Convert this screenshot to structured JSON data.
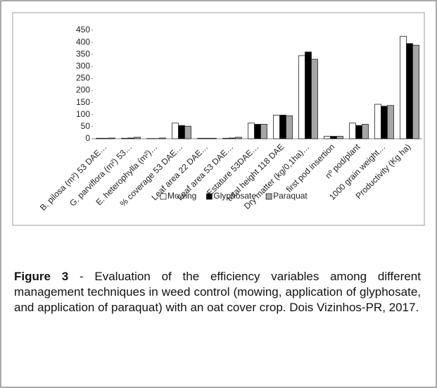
{
  "chart_data": {
    "type": "bar",
    "categories": [
      "B. pilosa (m²) 53 DAE…",
      "G. parviflora (m²) 53…",
      "E. heterophylla (m²)…",
      "% coverage 53 DAE…",
      "Leaf area 22 DAE…",
      "Leaf area 53 DAE…",
      "Estature 53DAE…",
      "total height 118 DAE",
      "Dry matter (kg/0,1ha)…",
      "first pod insertion",
      "nº pod/plant",
      "1000 grain weight…",
      "Productivity (Kg ha)"
    ],
    "series": [
      {
        "name": "Mowing",
        "color": "#ffffff",
        "values": [
          2,
          2,
          1,
          65,
          2,
          2,
          65,
          98,
          345,
          10,
          65,
          143,
          425
        ]
      },
      {
        "name": "Glyphosate",
        "color": "#000000",
        "values": [
          2,
          3,
          1,
          55,
          2,
          3,
          60,
          98,
          360,
          10,
          55,
          135,
          395
        ]
      },
      {
        "name": "Paraquat",
        "color": "#a6a6a6",
        "values": [
          3,
          6,
          3,
          52,
          2,
          6,
          60,
          95,
          330,
          10,
          60,
          138,
          388
        ]
      }
    ],
    "ylim": [
      0,
      450
    ],
    "yticks": [
      0,
      50,
      100,
      150,
      200,
      250,
      300,
      350,
      400,
      450
    ],
    "legend": "bottom",
    "caption_label": "Figure 3",
    "caption": "- Evaluation of the efficiency variables among different management techniques in weed control (mowing, application of glyphosate, and application of paraquat) with an oat cover crop. Dois Vizinhos-PR, 2017."
  }
}
